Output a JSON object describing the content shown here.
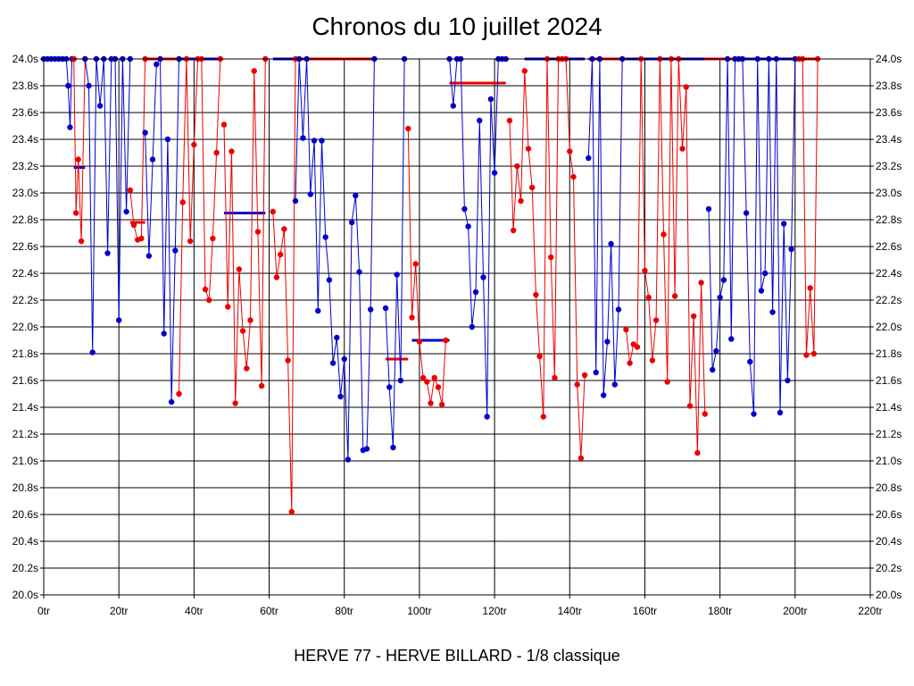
{
  "chart_data": {
    "type": "line",
    "title": "Chronos du 10 juillet 2024",
    "subtitle": "HERVE 77 - HERVE BILLARD - 1/8 classique",
    "xlim": [
      0,
      220
    ],
    "ylim": [
      20.0,
      24.0
    ],
    "x_ticks": [
      0,
      20,
      40,
      60,
      80,
      100,
      120,
      140,
      160,
      180,
      200,
      220
    ],
    "x_tick_labels": [
      "0tr",
      "20tr",
      "40tr",
      "60tr",
      "80tr",
      "100tr",
      "120tr",
      "140tr",
      "160tr",
      "180tr",
      "200tr",
      "220tr"
    ],
    "y_ticks": [
      20.0,
      20.2,
      20.4,
      20.6,
      20.8,
      21.0,
      21.2,
      21.4,
      21.6,
      21.8,
      22.0,
      22.2,
      22.4,
      22.6,
      22.8,
      23.0,
      23.2,
      23.4,
      23.6,
      23.8,
      24.0
    ],
    "y_tick_labels": [
      "20.0s",
      "20.2s",
      "20.4s",
      "20.6s",
      "20.8s",
      "21.0s",
      "21.2s",
      "21.4s",
      "21.6s",
      "21.8s",
      "22.0s",
      "22.2s",
      "22.4s",
      "22.6s",
      "22.8s",
      "23.0s",
      "23.2s",
      "23.4s",
      "23.6s",
      "23.8s",
      "24.0s"
    ],
    "grid": true,
    "series_colors": {
      "blue": "#0000cc",
      "red": "#ee0000"
    },
    "segments": [
      {
        "color": "blue",
        "points": [
          [
            0,
            24.0
          ],
          [
            1,
            24.0
          ],
          [
            2,
            24.0
          ],
          [
            3,
            24.0
          ],
          [
            4,
            24.0
          ],
          [
            5,
            24.0
          ],
          [
            6,
            24.0
          ],
          [
            6.5,
            23.8
          ],
          [
            7,
            23.49
          ],
          [
            7.5,
            24.0
          ],
          [
            8,
            24.0
          ]
        ]
      },
      {
        "color": "red",
        "points": [
          [
            8,
            24.0
          ],
          [
            8.6,
            22.85
          ],
          [
            9.2,
            23.25
          ],
          [
            10,
            22.64
          ],
          [
            11,
            24.0
          ]
        ]
      },
      {
        "color": "blue",
        "points": [
          [
            11,
            24.0
          ],
          [
            12,
            23.8
          ],
          [
            13,
            21.81
          ],
          [
            14,
            24.0
          ],
          [
            15,
            23.65
          ],
          [
            16,
            24.0
          ],
          [
            17,
            22.55
          ],
          [
            18,
            24.0
          ],
          [
            19,
            24.0
          ],
          [
            20,
            22.05
          ],
          [
            21,
            24.0
          ],
          [
            22,
            22.86
          ],
          [
            23,
            24.0
          ]
        ]
      },
      {
        "color": "red",
        "points": [
          [
            23,
            23.02
          ],
          [
            24,
            22.76
          ],
          [
            25,
            22.65
          ],
          [
            26,
            22.66
          ],
          [
            27,
            24.0
          ]
        ]
      },
      {
        "color": "blue",
        "points": [
          [
            27,
            23.45
          ],
          [
            28,
            22.53
          ],
          [
            29,
            23.25
          ],
          [
            30,
            23.96
          ],
          [
            31,
            24.0
          ],
          [
            32,
            21.95
          ],
          [
            33,
            23.4
          ],
          [
            34,
            21.44
          ],
          [
            35,
            22.57
          ],
          [
            36,
            24.0
          ]
        ]
      },
      {
        "color": "red",
        "points": [
          [
            36,
            21.5
          ],
          [
            37,
            22.93
          ],
          [
            38,
            24.0
          ],
          [
            39,
            22.64
          ],
          [
            40,
            23.36
          ],
          [
            41,
            24.0
          ],
          [
            42,
            24.0
          ],
          [
            43,
            22.28
          ],
          [
            44,
            22.2
          ],
          [
            45,
            22.66
          ],
          [
            46,
            23.3
          ],
          [
            47,
            24.0
          ]
        ]
      },
      {
        "color": "red",
        "points": [
          [
            48,
            23.51
          ],
          [
            49,
            22.15
          ],
          [
            50,
            23.31
          ],
          [
            51,
            21.43
          ],
          [
            52,
            22.43
          ],
          [
            53,
            21.97
          ],
          [
            54,
            21.69
          ],
          [
            55,
            22.05
          ],
          [
            56,
            23.91
          ],
          [
            57,
            22.71
          ],
          [
            58,
            21.56
          ],
          [
            59,
            24.0
          ]
        ]
      },
      {
        "color": "red",
        "points": [
          [
            61,
            22.86
          ],
          [
            62,
            22.37
          ],
          [
            63,
            22.54
          ],
          [
            64,
            22.73
          ],
          [
            65,
            21.75
          ],
          [
            66,
            20.62
          ],
          [
            67,
            24.0
          ]
        ]
      },
      {
        "color": "blue",
        "points": [
          [
            67,
            22.94
          ],
          [
            68,
            24.0
          ],
          [
            69,
            23.41
          ],
          [
            70,
            24.0
          ],
          [
            71,
            22.99
          ],
          [
            72,
            23.39
          ],
          [
            73,
            22.12
          ],
          [
            74,
            23.39
          ],
          [
            75,
            22.67
          ],
          [
            76,
            22.35
          ],
          [
            77,
            21.73
          ],
          [
            78,
            21.92
          ],
          [
            79,
            21.48
          ],
          [
            80,
            21.76
          ],
          [
            81,
            21.01
          ],
          [
            82,
            22.78
          ],
          [
            83,
            22.98
          ],
          [
            84,
            22.41
          ],
          [
            85,
            21.08
          ],
          [
            86,
            21.09
          ],
          [
            87,
            22.13
          ],
          [
            88,
            24.0
          ]
        ]
      },
      {
        "color": "blue",
        "points": [
          [
            91,
            22.14
          ],
          [
            92,
            21.55
          ],
          [
            93,
            21.1
          ],
          [
            94,
            22.39
          ],
          [
            95,
            21.6
          ],
          [
            96,
            24.0
          ]
        ]
      },
      {
        "color": "red",
        "points": [
          [
            97,
            23.48
          ],
          [
            98,
            22.07
          ],
          [
            99,
            22.47
          ],
          [
            100,
            21.89
          ],
          [
            101,
            21.62
          ],
          [
            102,
            21.59
          ],
          [
            103,
            21.43
          ],
          [
            104,
            21.62
          ],
          [
            105,
            21.55
          ],
          [
            106,
            21.42
          ],
          [
            107,
            21.9
          ]
        ]
      },
      {
        "color": "blue",
        "points": [
          [
            108,
            24.0
          ],
          [
            109,
            23.65
          ],
          [
            110,
            24.0
          ],
          [
            111,
            24.0
          ],
          [
            112,
            22.88
          ],
          [
            113,
            22.75
          ],
          [
            114,
            22.0
          ],
          [
            115,
            22.26
          ],
          [
            116,
            23.54
          ],
          [
            117,
            22.37
          ],
          [
            118,
            21.33
          ],
          [
            119,
            23.7
          ],
          [
            120,
            23.15
          ],
          [
            121,
            24.0
          ],
          [
            122,
            24.0
          ],
          [
            123,
            24.0
          ]
        ]
      },
      {
        "color": "red",
        "points": [
          [
            124,
            23.54
          ],
          [
            125,
            22.72
          ],
          [
            126,
            23.2
          ],
          [
            127,
            22.94
          ],
          [
            128,
            23.91
          ],
          [
            129,
            23.33
          ],
          [
            130,
            23.04
          ],
          [
            131,
            22.24
          ],
          [
            132,
            21.78
          ],
          [
            133,
            21.33
          ],
          [
            134,
            24.0
          ],
          [
            135,
            22.52
          ],
          [
            136,
            21.62
          ],
          [
            137,
            24.0
          ],
          [
            138,
            24.0
          ],
          [
            139,
            24.0
          ],
          [
            140,
            23.31
          ],
          [
            141,
            23.12
          ],
          [
            142,
            21.57
          ],
          [
            143,
            21.02
          ],
          [
            144,
            21.64
          ]
        ]
      },
      {
        "color": "blue",
        "points": [
          [
            145,
            23.26
          ],
          [
            146,
            24.0
          ],
          [
            147,
            21.66
          ],
          [
            148,
            24.0
          ],
          [
            149,
            21.49
          ],
          [
            150,
            21.89
          ],
          [
            151,
            22.62
          ],
          [
            152,
            21.57
          ],
          [
            153,
            22.13
          ],
          [
            154,
            24.0
          ]
        ]
      },
      {
        "color": "red",
        "points": [
          [
            155,
            21.98
          ],
          [
            156,
            21.73
          ],
          [
            157,
            21.87
          ],
          [
            158,
            21.85
          ],
          [
            159,
            24.0
          ],
          [
            160,
            22.42
          ],
          [
            161,
            22.22
          ],
          [
            162,
            21.75
          ],
          [
            163,
            22.05
          ],
          [
            164,
            24.0
          ],
          [
            165,
            22.69
          ],
          [
            166,
            21.59
          ],
          [
            167,
            24.0
          ],
          [
            168,
            22.23
          ],
          [
            169,
            24.0
          ],
          [
            170,
            23.33
          ],
          [
            171,
            23.79
          ],
          [
            172,
            21.41
          ],
          [
            173,
            22.08
          ],
          [
            174,
            21.06
          ],
          [
            175,
            22.33
          ],
          [
            176,
            21.35
          ]
        ]
      },
      {
        "color": "blue",
        "points": [
          [
            177,
            22.88
          ],
          [
            178,
            21.68
          ],
          [
            179,
            21.82
          ],
          [
            180,
            22.22
          ],
          [
            181,
            22.35
          ],
          [
            182,
            24.0
          ],
          [
            183,
            21.91
          ],
          [
            184,
            24.0
          ],
          [
            185,
            24.0
          ],
          [
            186,
            24.0
          ],
          [
            187,
            22.85
          ],
          [
            188,
            21.74
          ],
          [
            189,
            21.35
          ],
          [
            190,
            24.0
          ],
          [
            191,
            22.27
          ],
          [
            192,
            22.4
          ],
          [
            193,
            24.0
          ],
          [
            194,
            22.11
          ],
          [
            195,
            24.0
          ],
          [
            196,
            21.36
          ],
          [
            197,
            22.77
          ],
          [
            198,
            21.6
          ],
          [
            199,
            22.58
          ],
          [
            200,
            24.0
          ]
        ]
      },
      {
        "color": "red",
        "points": [
          [
            201,
            24.0
          ],
          [
            202,
            24.0
          ],
          [
            203,
            21.79
          ],
          [
            204,
            22.29
          ],
          [
            205,
            21.8
          ],
          [
            206,
            24.0
          ]
        ]
      }
    ],
    "averages": [
      {
        "color": "blue",
        "x": [
          8,
          11
        ],
        "y": 23.19
      },
      {
        "color": "red",
        "x": [
          23,
          27
        ],
        "y": 22.78
      },
      {
        "color": "red",
        "x": [
          27,
          36
        ],
        "y": 24.0
      },
      {
        "color": "blue",
        "x": [
          36,
          47
        ],
        "y": 24.0
      },
      {
        "color": "blue",
        "x": [
          48,
          59
        ],
        "y": 22.85
      },
      {
        "color": "blue",
        "x": [
          61,
          69
        ],
        "y": 24.0
      },
      {
        "color": "red",
        "x": [
          69,
          88
        ],
        "y": 24.0
      },
      {
        "color": "red",
        "x": [
          91,
          97
        ],
        "y": 21.76
      },
      {
        "color": "blue",
        "x": [
          98,
          108
        ],
        "y": 21.9
      },
      {
        "color": "red",
        "x": [
          108,
          123
        ],
        "y": 23.82
      },
      {
        "color": "blue",
        "x": [
          128,
          144
        ],
        "y": 24.0
      },
      {
        "color": "red",
        "x": [
          145,
          155
        ],
        "y": 24.0
      },
      {
        "color": "blue",
        "x": [
          155,
          176
        ],
        "y": 24.0
      },
      {
        "color": "red",
        "x": [
          176,
          186
        ],
        "y": 24.0
      },
      {
        "color": "blue",
        "x": [
          186,
          200
        ],
        "y": 24.0
      },
      {
        "color": "red",
        "x": [
          200,
          206
        ],
        "y": 24.0
      }
    ]
  }
}
